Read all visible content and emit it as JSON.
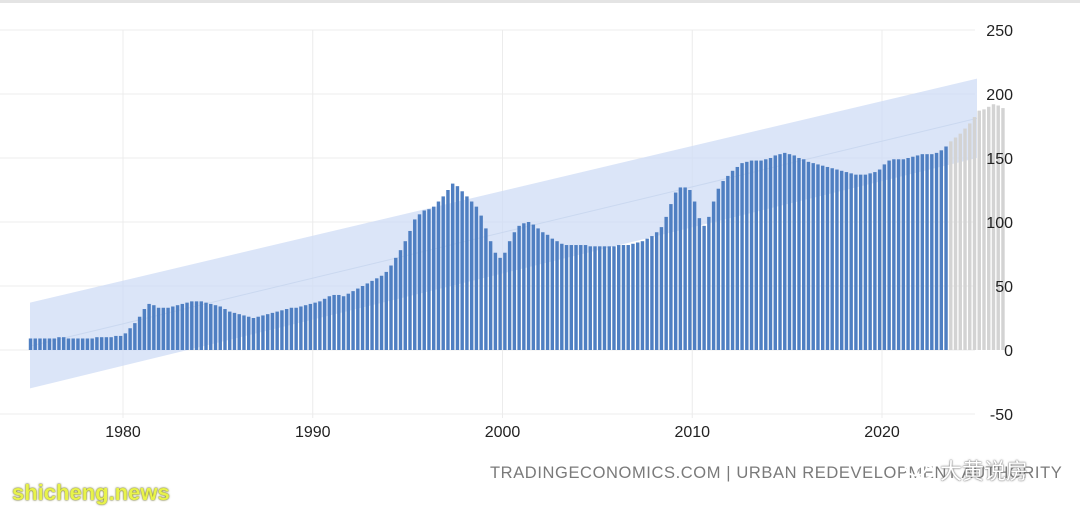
{
  "source_credit": "TRADINGECONOMICS.COM | URBAN REDEVELOPMENT AUTHORITY",
  "watermark_left": "shicheng.news",
  "watermark_right": "大黄说房",
  "watermark_icon": "wechat-icon",
  "colors": {
    "bar": "#4f7fc2",
    "bar_forecast": "#d3d3d3",
    "channel_band": "#cfdcf5",
    "trend_line": "#c6d4ee",
    "grid": "#ececec",
    "axis_text": "#222222",
    "watermark_left": "#e8f34a"
  },
  "chart_data": {
    "type": "bar",
    "x_start": 1975.0,
    "x_step": 0.25,
    "xlim": [
      1975.0,
      2024.5
    ],
    "ylim": [
      -50,
      250
    ],
    "x_ticks": [
      1980,
      1990,
      2000,
      2010,
      2020
    ],
    "y_ticks": [
      250,
      200,
      150,
      100,
      50,
      0,
      -50
    ],
    "y_axis_side": "right",
    "grid": true,
    "legend": "none",
    "actual_until": 2023.25,
    "series": [
      {
        "values": [
          9,
          9,
          9,
          9,
          9,
          9,
          10,
          10,
          9,
          9,
          9,
          9,
          9,
          9,
          10,
          10,
          10,
          10,
          11,
          11,
          13,
          17,
          21,
          26,
          32,
          36,
          35,
          33,
          33,
          33,
          34,
          35,
          36,
          37,
          38,
          38,
          38,
          37,
          36,
          35,
          34,
          32,
          30,
          29,
          28,
          27,
          26,
          25,
          26,
          27,
          28,
          29,
          30,
          31,
          32,
          33,
          33,
          34,
          35,
          36,
          37,
          38,
          40,
          42,
          43,
          43,
          42,
          44,
          46,
          48,
          50,
          52,
          54,
          56,
          58,
          61,
          66,
          72,
          78,
          85,
          93,
          102,
          106,
          109,
          110,
          112,
          116,
          120,
          125,
          130,
          128,
          124,
          120,
          116,
          112,
          105,
          95,
          85,
          76,
          72,
          76,
          85,
          92,
          97,
          99,
          100,
          98,
          95,
          92,
          90,
          87,
          85,
          83,
          82,
          82,
          82,
          82,
          82,
          81,
          81,
          81,
          81,
          81,
          81,
          82,
          82,
          82,
          83,
          84,
          85,
          87,
          89,
          92,
          96,
          104,
          114,
          123,
          127,
          127,
          125,
          116,
          103,
          97,
          104,
          116,
          126,
          132,
          136,
          140,
          143,
          146,
          147,
          148,
          148,
          148,
          149,
          150,
          152,
          153,
          154,
          153,
          152,
          150,
          149,
          147,
          146,
          145,
          144,
          143,
          142,
          141,
          140,
          139,
          138,
          137,
          137,
          137,
          138,
          139,
          141,
          145,
          148,
          149,
          149,
          149,
          150,
          151,
          152,
          153,
          153,
          153,
          154,
          156,
          159,
          163,
          166,
          169,
          173,
          177,
          182,
          187,
          188,
          190,
          192,
          191,
          189
        ]
      }
    ],
    "channel": {
      "lower_start": -30,
      "lower_end": 150,
      "upper_start": 37,
      "upper_end": 212,
      "mid_start": 3,
      "mid_end": 181
    }
  }
}
